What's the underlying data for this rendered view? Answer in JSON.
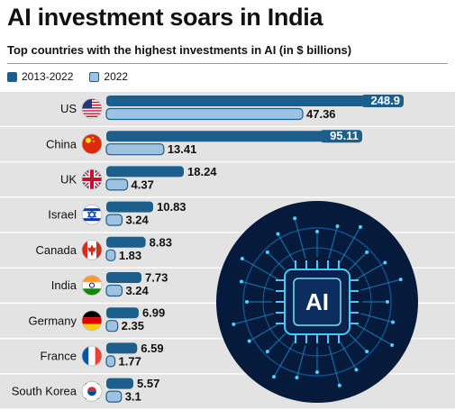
{
  "title": "AI investment soars in India",
  "subtitle": "Top countries with the highest investments in AI (in $ billions)",
  "colors": {
    "series_dark": "#1c5f8c",
    "series_light": "#9fc2e0",
    "row_bg": "#e3e3e3",
    "row_line": "#ffffff"
  },
  "icons": [
    "flag-us-icon",
    "flag-china-icon",
    "flag-uk-icon",
    "flag-israel-icon",
    "flag-canada-icon",
    "flag-india-icon",
    "flag-germany-icon",
    "flag-france-icon",
    "flag-south-korea-icon",
    "ai-chip-illustration"
  ],
  "chart_data": {
    "type": "bar",
    "orientation": "horizontal",
    "categories": [
      "US",
      "China",
      "UK",
      "Israel",
      "Canada",
      "India",
      "Germany",
      "France",
      "South Korea"
    ],
    "series": [
      {
        "name": "2013-2022",
        "values": [
          248.9,
          95.11,
          18.24,
          10.83,
          8.83,
          7.73,
          6.99,
          6.59,
          5.57
        ]
      },
      {
        "name": "2022",
        "values": [
          47.36,
          13.41,
          4.37,
          3.24,
          1.83,
          3.24,
          2.35,
          1.77,
          3.1
        ]
      }
    ],
    "value_labels": [
      [
        "248.9",
        "95.11",
        "18.24",
        "10.83",
        "8.83",
        "7.73",
        "6.99",
        "6.59",
        "5.57"
      ],
      [
        "47.36",
        "13.41",
        "4.37",
        "3.24",
        "1.83",
        "3.24",
        "2.35",
        "1.77",
        "3.1"
      ]
    ],
    "title": "AI investment soars in India",
    "subtitle": "Top countries with the highest investments in AI (in $ billions)",
    "xlabel": "",
    "ylabel": "",
    "legend": "top-left",
    "grid": false
  }
}
